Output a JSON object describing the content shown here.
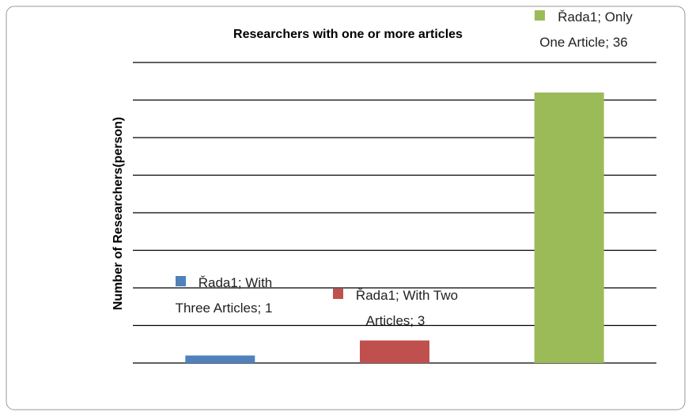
{
  "chart_data": {
    "type": "bar",
    "title": "Researchers with one or more articles",
    "y_label": "Number  of Researchers(person)",
    "values": [
      1,
      3,
      36
    ],
    "value_labels": [
      "Řada1; With Three Articles; 1",
      "Řada1; With Two Articles; 3",
      "Řada1; Only One Article; 36"
    ],
    "colors": [
      "#4f81bd",
      "#c0504d",
      "#9bbb59"
    ],
    "ylim": [
      0,
      40
    ],
    "yticks": [
      0,
      5,
      10,
      15,
      20,
      25,
      30,
      35,
      40
    ],
    "grid": true
  }
}
